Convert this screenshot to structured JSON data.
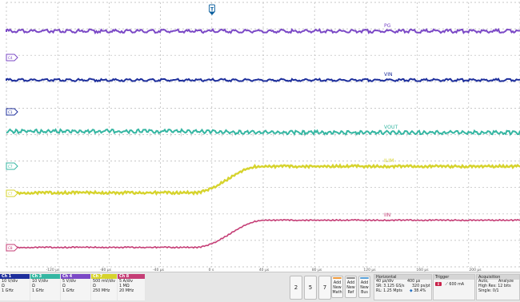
{
  "colors": {
    "ch1": "#1e2f9c",
    "ch3": "#35b6a2",
    "ch4": "#7b49c6",
    "ch7": "#d6d32d",
    "ch8": "#c53e76",
    "grid": "#b5b5b5",
    "trigger_marker": "#0b5f9e"
  },
  "waveforms": [
    {
      "name": "PG",
      "marker": "C4",
      "color_key": "ch4"
    },
    {
      "name": "VIN",
      "marker": "C1",
      "color_key": "ch1"
    },
    {
      "name": "VOUT",
      "marker": "",
      "color_key": "ch3"
    },
    {
      "name": "ILIM",
      "marker": "C7",
      "color_key": "ch7"
    },
    {
      "name": "IIN",
      "marker": "C8",
      "color_key": "ch8"
    }
  ],
  "time_axis": {
    "labels": [
      "-120 µs",
      "-80 µs",
      "-40 µs",
      "0 s",
      "40 µs",
      "80 µs",
      "120 µs",
      "160 µs",
      "200 µs"
    ]
  },
  "trigger_marker_label": "T",
  "channels": [
    {
      "id": "ch1",
      "header": "Ch 1",
      "line1": "10 V/div",
      "line2": "Ω",
      "line3": "1 GHz"
    },
    {
      "id": "ch3",
      "header": "Ch 3",
      "line1": "10 V/div",
      "line2": "Ω",
      "line3": "1 GHz"
    },
    {
      "id": "ch4",
      "header": "Ch 4",
      "line1": "5 V/div",
      "line2": "Ω",
      "line3": "1 GHz"
    },
    {
      "id": "ch7",
      "header": "Ch 7",
      "line1": "500 mV/div",
      "line2": "Ω",
      "line3": "250 MHz"
    },
    {
      "id": "ch8",
      "header": "Ch 8",
      "line1": "5 A/div",
      "line2": "1 MΩ",
      "line3": "20 MHz"
    }
  ],
  "number_buttons": [
    "2",
    "5",
    "7"
  ],
  "add_buttons": [
    {
      "l1": "Add",
      "l2": "New",
      "l3": "Math"
    },
    {
      "l1": "Add",
      "l2": "New",
      "l3": "Ref"
    },
    {
      "l1": "Add",
      "l2": "New",
      "l3": "Bus"
    }
  ],
  "horizontal": {
    "title": "Horizontal",
    "scale": "40 µs/div",
    "duration": "400 µs",
    "sample_rate": "SR: 3.125 GS/s",
    "interval": "320 ps/pt",
    "record_length": "RL: 1.25 Mpts",
    "position": "38.4%"
  },
  "trigger": {
    "title": "Trigger",
    "source": "8",
    "level": "600 mA"
  },
  "acquisition": {
    "title": "Acquisition",
    "mode": "Auto,",
    "analyze": "Analyze",
    "resolution": "High Res: 12 bits",
    "single": "Single: 0/1"
  }
}
